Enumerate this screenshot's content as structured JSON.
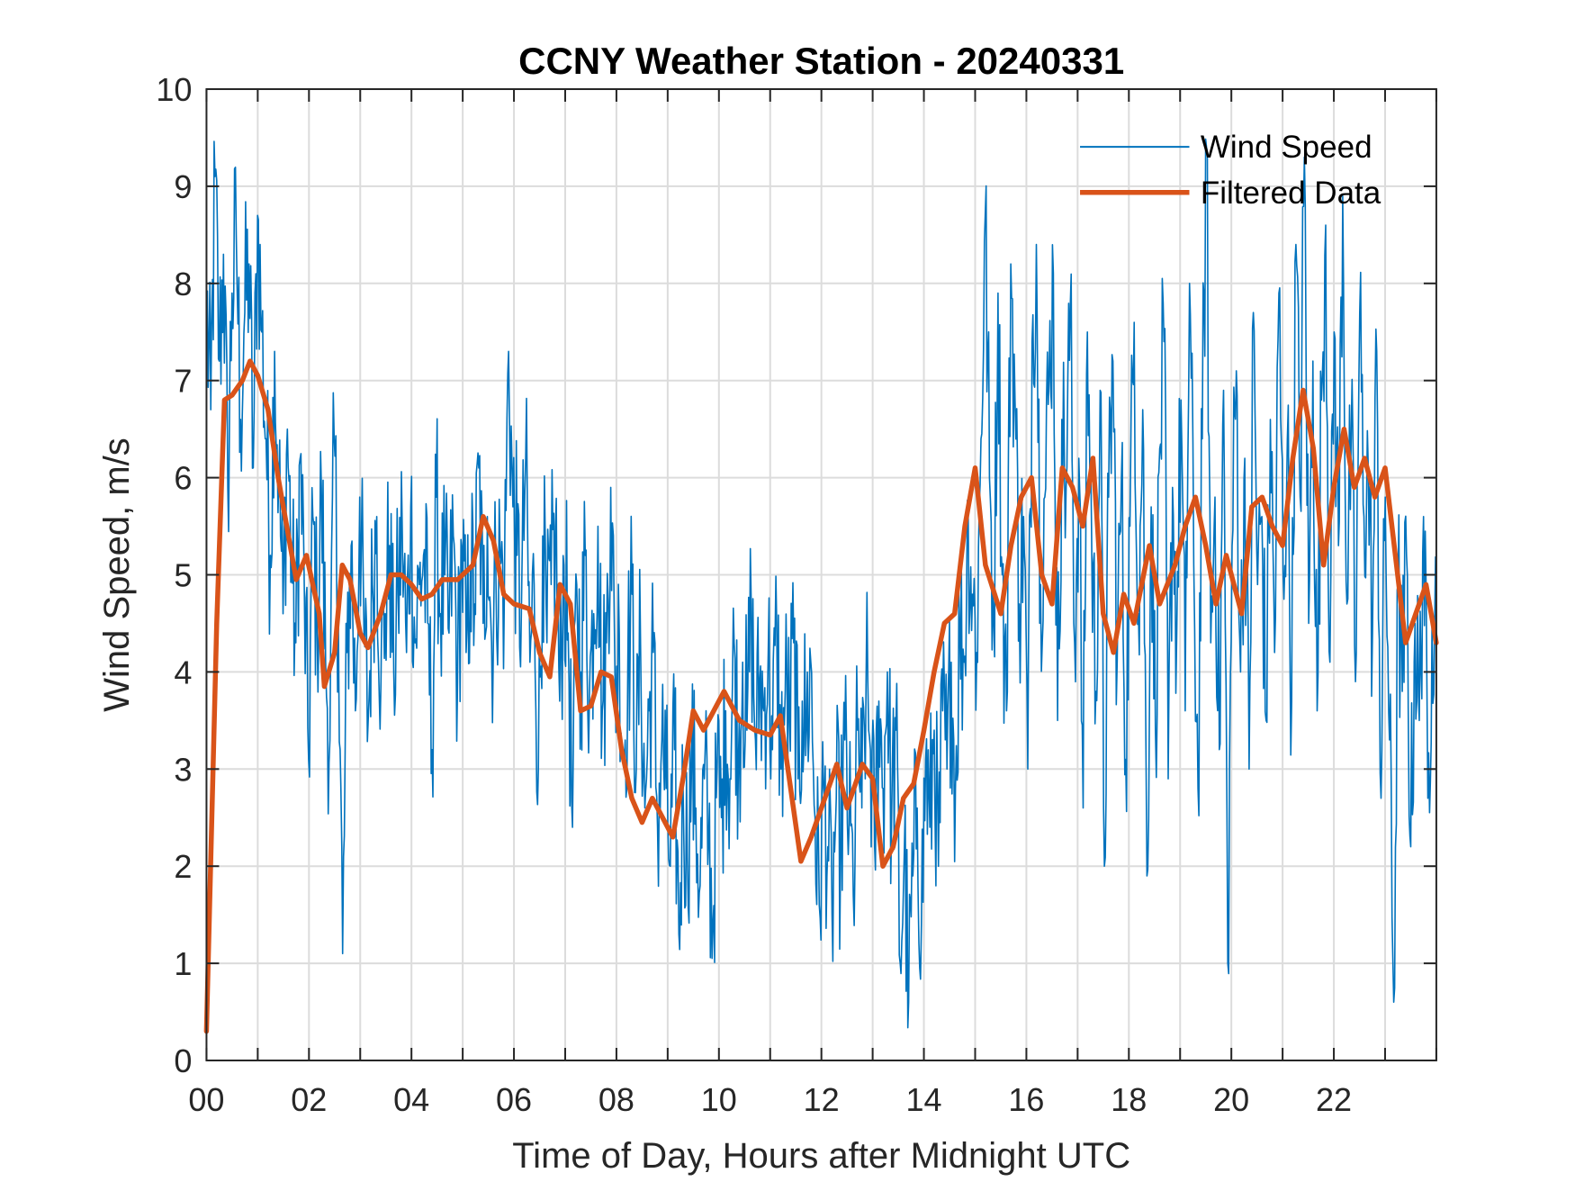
{
  "chart_data": {
    "type": "line",
    "title": "CCNY Weather Station - 20240331",
    "xlabel": "Time of Day, Hours after Midnight UTC",
    "ylabel": "Wind Speed, m/s",
    "xlim": [
      0,
      24
    ],
    "ylim": [
      0,
      10
    ],
    "xticks": [
      0,
      2,
      4,
      6,
      8,
      10,
      12,
      14,
      16,
      18,
      20,
      22
    ],
    "xtick_labels": [
      "00",
      "02",
      "04",
      "06",
      "08",
      "10",
      "12",
      "14",
      "16",
      "18",
      "20",
      "22"
    ],
    "xminor_grid_step": 1,
    "yticks": [
      0,
      1,
      2,
      3,
      4,
      5,
      6,
      7,
      8,
      9,
      10
    ],
    "ytick_labels": [
      "0",
      "1",
      "2",
      "3",
      "4",
      "5",
      "6",
      "7",
      "8",
      "9",
      "10"
    ],
    "grid": true,
    "legend_position": "top-right",
    "series": [
      {
        "name": "Wind Speed",
        "color": "#0072BD",
        "style": "thin",
        "x_step_hours": 0.0833,
        "values": [
          7.8,
          6.7,
          9.1,
          7.2,
          8.3,
          5.9,
          7.9,
          8.5,
          6.6,
          7.7,
          8.2,
          6.1,
          8.7,
          7.5,
          6.4,
          5.2,
          7.3,
          6.0,
          4.6,
          6.5,
          5.1,
          4.3,
          6.2,
          4.8,
          3.1,
          5.6,
          4.4,
          5.9,
          4.1,
          3.3,
          6.4,
          4.5,
          1.1,
          4.2,
          5.3,
          3.6,
          5.8,
          4.4,
          3.5,
          4.9,
          5.6,
          3.9,
          4.6,
          5.3,
          4.0,
          4.8,
          5.5,
          4.2,
          5.7,
          4.3,
          4.9,
          5.2,
          4.5,
          3.2,
          5.8,
          4.6,
          5.0,
          4.4,
          5.4,
          3.9,
          5.3,
          4.2,
          5.1,
          4.7,
          6.1,
          4.5,
          5.6,
          4.3,
          5.0,
          5.2,
          4.8,
          7.3,
          5.7,
          5.2,
          4.6,
          6.2,
          4.1,
          4.9,
          3.0,
          5.4,
          4.3,
          4.9,
          5.5,
          3.7,
          5.1,
          4.4,
          2.4,
          4.9,
          4.0,
          5.2,
          3.8,
          4.6,
          5.5,
          3.6,
          4.3,
          5.9,
          3.9,
          4.4,
          3.1,
          4.0,
          4.8,
          3.0,
          4.3,
          2.6,
          3.6,
          4.2,
          2.4,
          3.3,
          2.8,
          2.0,
          3.2,
          1.3,
          2.8,
          2.1,
          3.1,
          2.6,
          1.8,
          2.9,
          2.3,
          1.4,
          3.0,
          2.5,
          3.6,
          2.9,
          4.3,
          3.1,
          4.1,
          3.4,
          4.7,
          3.3,
          3.9,
          3.6,
          4.2,
          3.2,
          4.5,
          3.0,
          3.8,
          3.5,
          4.3,
          2.9,
          3.7,
          3.4,
          4.1,
          2.5,
          1.6,
          2.8,
          2.2,
          1.5,
          2.7,
          2.1,
          3.3,
          2.4,
          1.7,
          3.4,
          2.6,
          3.9,
          3.2,
          2.2,
          3.7,
          2.8,
          4.0,
          2.5,
          3.4,
          1.0,
          2.2,
          0.6,
          1.9,
          2.6,
          1.4,
          3.1,
          2.4,
          3.4,
          2.0,
          3.6,
          3.0,
          4.1,
          2.8,
          4.5,
          4.1,
          5.6,
          4.8,
          4.2,
          6.4,
          8.7,
          6.0,
          4.5,
          7.9,
          5.0,
          3.6,
          8.2,
          6.8,
          4.7,
          5.6,
          3.0,
          7.4,
          8.4,
          4.9,
          5.8,
          7.0,
          8.1,
          3.5,
          6.6,
          5.9,
          7.8,
          4.3,
          6.2,
          2.6,
          7.5,
          5.4,
          3.8,
          6.9,
          2.0,
          5.8,
          7.2,
          4.1,
          6.0,
          3.1,
          5.5,
          7.6,
          4.6,
          6.7,
          1.9,
          5.7,
          3.4,
          6.3,
          7.4,
          2.9,
          5.9,
          4.4,
          6.8,
          3.6,
          8.0,
          5.1,
          2.8,
          6.4,
          9.4,
          4.3,
          5.8,
          3.2,
          6.9,
          1.0,
          5.3,
          7.1,
          4.0,
          6.2,
          3.0,
          7.7,
          4.9,
          5.6,
          3.5,
          6.6,
          4.2,
          7.9,
          5.0,
          6.4,
          3.7,
          8.4,
          5.8,
          9.3,
          4.5,
          7.2,
          3.6,
          6.8,
          8.6,
          4.1,
          7.5,
          5.3,
          8.9,
          4.7,
          6.5,
          3.9,
          7.7,
          5.6,
          6.1,
          4.4,
          7.3,
          2.7,
          5.8,
          3.3,
          0.6,
          4.9,
          3.8,
          5.2,
          2.2,
          4.5,
          3.5,
          5.6,
          2.7,
          4.6
        ]
      },
      {
        "name": "Filtered Data",
        "color": "#D95319",
        "style": "thick",
        "points": [
          [
            0.0,
            0.3
          ],
          [
            0.2,
            4.5
          ],
          [
            0.35,
            6.8
          ],
          [
            0.5,
            6.85
          ],
          [
            0.7,
            7.0
          ],
          [
            0.85,
            7.2
          ],
          [
            1.0,
            7.05
          ],
          [
            1.2,
            6.7
          ],
          [
            1.4,
            6.0
          ],
          [
            1.6,
            5.4
          ],
          [
            1.75,
            4.95
          ],
          [
            1.95,
            5.2
          ],
          [
            2.2,
            4.6
          ],
          [
            2.3,
            3.85
          ],
          [
            2.5,
            4.2
          ],
          [
            2.65,
            5.1
          ],
          [
            2.8,
            4.95
          ],
          [
            3.0,
            4.4
          ],
          [
            3.15,
            4.25
          ],
          [
            3.4,
            4.6
          ],
          [
            3.6,
            5.0
          ],
          [
            3.8,
            5.0
          ],
          [
            4.0,
            4.9
          ],
          [
            4.2,
            4.75
          ],
          [
            4.4,
            4.8
          ],
          [
            4.6,
            4.95
          ],
          [
            4.9,
            4.95
          ],
          [
            5.2,
            5.1
          ],
          [
            5.4,
            5.6
          ],
          [
            5.6,
            5.35
          ],
          [
            5.8,
            4.8
          ],
          [
            6.0,
            4.7
          ],
          [
            6.3,
            4.65
          ],
          [
            6.5,
            4.2
          ],
          [
            6.7,
            3.95
          ],
          [
            6.9,
            4.9
          ],
          [
            7.1,
            4.7
          ],
          [
            7.3,
            3.6
          ],
          [
            7.5,
            3.65
          ],
          [
            7.7,
            4.0
          ],
          [
            7.9,
            3.95
          ],
          [
            8.1,
            3.2
          ],
          [
            8.3,
            2.7
          ],
          [
            8.5,
            2.45
          ],
          [
            8.7,
            2.7
          ],
          [
            8.9,
            2.5
          ],
          [
            9.1,
            2.3
          ],
          [
            9.3,
            2.9
          ],
          [
            9.5,
            3.6
          ],
          [
            9.7,
            3.4
          ],
          [
            9.9,
            3.6
          ],
          [
            10.1,
            3.8
          ],
          [
            10.4,
            3.5
          ],
          [
            10.7,
            3.4
          ],
          [
            11.0,
            3.35
          ],
          [
            11.2,
            3.55
          ],
          [
            11.4,
            2.8
          ],
          [
            11.6,
            2.05
          ],
          [
            11.8,
            2.3
          ],
          [
            12.0,
            2.6
          ],
          [
            12.3,
            3.05
          ],
          [
            12.5,
            2.6
          ],
          [
            12.8,
            3.05
          ],
          [
            13.0,
            2.9
          ],
          [
            13.2,
            2.0
          ],
          [
            13.4,
            2.2
          ],
          [
            13.6,
            2.7
          ],
          [
            13.8,
            2.85
          ],
          [
            14.0,
            3.4
          ],
          [
            14.2,
            4.0
          ],
          [
            14.4,
            4.5
          ],
          [
            14.6,
            4.6
          ],
          [
            14.8,
            5.5
          ],
          [
            15.0,
            6.1
          ],
          [
            15.2,
            5.1
          ],
          [
            15.5,
            4.6
          ],
          [
            15.7,
            5.3
          ],
          [
            15.9,
            5.8
          ],
          [
            16.1,
            6.0
          ],
          [
            16.3,
            5.0
          ],
          [
            16.5,
            4.7
          ],
          [
            16.7,
            6.1
          ],
          [
            16.9,
            5.9
          ],
          [
            17.1,
            5.5
          ],
          [
            17.3,
            6.2
          ],
          [
            17.5,
            4.6
          ],
          [
            17.7,
            4.2
          ],
          [
            17.9,
            4.8
          ],
          [
            18.1,
            4.5
          ],
          [
            18.4,
            5.3
          ],
          [
            18.6,
            4.7
          ],
          [
            18.9,
            5.1
          ],
          [
            19.1,
            5.5
          ],
          [
            19.3,
            5.8
          ],
          [
            19.5,
            5.3
          ],
          [
            19.7,
            4.7
          ],
          [
            19.9,
            5.2
          ],
          [
            20.2,
            4.6
          ],
          [
            20.4,
            5.7
          ],
          [
            20.6,
            5.8
          ],
          [
            20.8,
            5.5
          ],
          [
            21.0,
            5.3
          ],
          [
            21.2,
            6.2
          ],
          [
            21.4,
            6.9
          ],
          [
            21.6,
            6.3
          ],
          [
            21.8,
            5.1
          ],
          [
            22.0,
            5.9
          ],
          [
            22.2,
            6.5
          ],
          [
            22.4,
            5.9
          ],
          [
            22.6,
            6.2
          ],
          [
            22.8,
            5.8
          ],
          [
            23.0,
            6.1
          ],
          [
            23.2,
            5.2
          ],
          [
            23.4,
            4.3
          ],
          [
            23.6,
            4.6
          ],
          [
            23.8,
            4.9
          ],
          [
            24.0,
            4.3
          ]
        ]
      }
    ]
  }
}
